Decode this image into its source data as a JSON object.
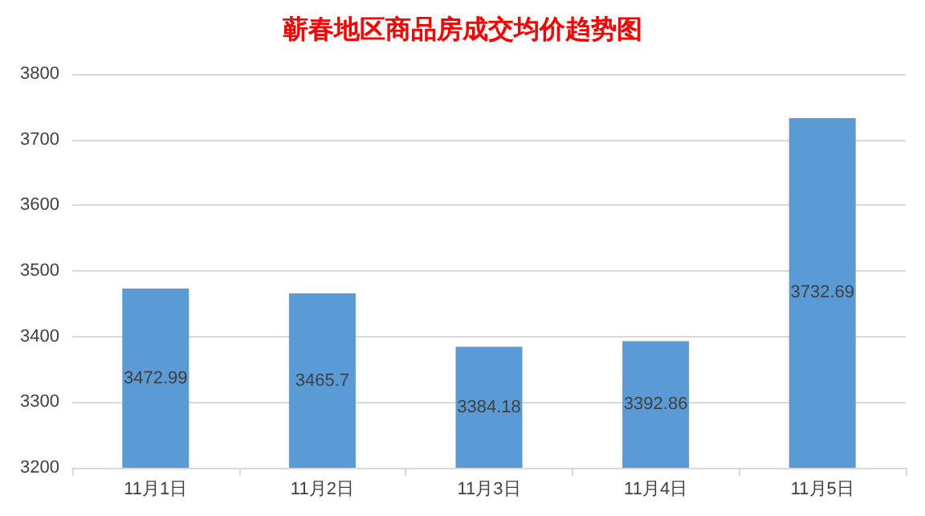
{
  "chart_data": {
    "type": "bar",
    "title": "蕲春地区商品房成交均价趋势图",
    "categories": [
      "11月1日",
      "11月2日",
      "11月3日",
      "11月4日",
      "11月5日"
    ],
    "values": [
      3472.99,
      3465.7,
      3384.18,
      3392.86,
      3732.69
    ],
    "color": "#5b9bd5",
    "ylim": [
      3200,
      3800
    ],
    "yticks": [
      3200,
      3300,
      3400,
      3500,
      3600,
      3700,
      3800
    ],
    "grid": "y",
    "data_labels": true
  }
}
